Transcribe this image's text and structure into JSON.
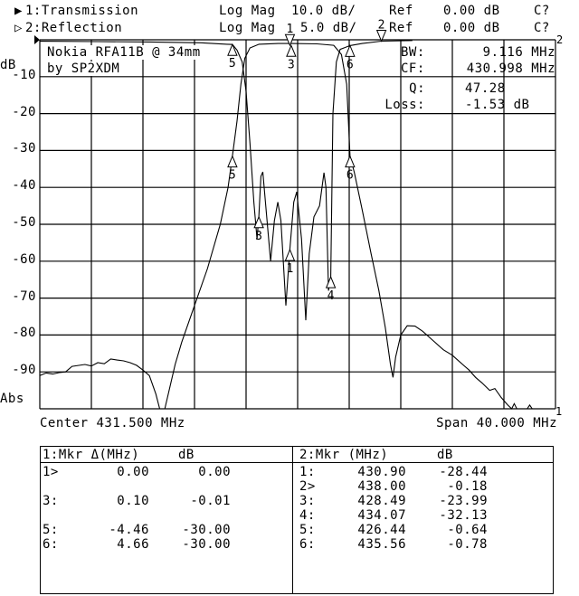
{
  "header": {
    "trace1": {
      "indicator": "▶",
      "label": "1:Transmission",
      "format": "Log Mag",
      "scale": "10.0 dB/",
      "ref_label": "Ref",
      "ref_value": "0.00 dB",
      "cal": "C?"
    },
    "trace2": {
      "indicator": "▷",
      "label": "2:Reflection",
      "format": "Log Mag",
      "scale": "5.0 dB/",
      "ref_label": "Ref",
      "ref_value": "0.00 dB",
      "cal": "C?"
    }
  },
  "annotation": {
    "title_line1": "Nokia RFA11B @ 34mm",
    "title_line2": "by SP2XDM",
    "bw_label": "BW:",
    "bw_value": "9.116 MHz",
    "cf_label": "CF:",
    "cf_value": "430.998 MHz",
    "q_label": "Q:",
    "q_value": "47.28",
    "loss_label": "Loss:",
    "loss_value": "-1.53 dB"
  },
  "axis": {
    "unit_label": "dB",
    "abs_label": "Abs",
    "y_ticks": [
      "-10",
      "-20",
      "-30",
      "-40",
      "-50",
      "-60",
      "-70",
      "-80",
      "-90"
    ],
    "center": "Center 431.500 MHz",
    "span": "Span 40.000 MHz",
    "trace1_end_label": "1",
    "trace2_end_label": "2"
  },
  "chart_data": {
    "type": "line",
    "title": "",
    "x_unit": "MHz",
    "xlim": [
      411.5,
      451.5
    ],
    "grid": true,
    "grid_divisions": {
      "x": 10,
      "y": 10
    },
    "series": [
      {
        "name": "1:Transmission",
        "ylim": [
          -100,
          0
        ],
        "color": "#000000",
        "points": [
          [
            411.5,
            -91
          ],
          [
            412,
            -90.3
          ],
          [
            412.5,
            -90.6
          ],
          [
            413,
            -90.2
          ],
          [
            413.5,
            -90
          ],
          [
            414,
            -88.5
          ],
          [
            415,
            -88
          ],
          [
            415.5,
            -88.4
          ],
          [
            416,
            -87.5
          ],
          [
            416.5,
            -87.8
          ],
          [
            417,
            -86.5
          ],
          [
            417.5,
            -86.8
          ],
          [
            418,
            -87
          ],
          [
            418.5,
            -87.5
          ],
          [
            419,
            -88.2
          ],
          [
            419.5,
            -89.5
          ],
          [
            420,
            -91
          ],
          [
            420.5,
            -96
          ],
          [
            420.8,
            -100
          ],
          [
            421.2,
            -100
          ],
          [
            421.6,
            -94
          ],
          [
            422,
            -88
          ],
          [
            422.5,
            -82
          ],
          [
            423.5,
            -72
          ],
          [
            424.5,
            -62
          ],
          [
            425.5,
            -50
          ],
          [
            426.1,
            -40
          ],
          [
            426.44,
            -31.5
          ],
          [
            426.8,
            -22
          ],
          [
            427.1,
            -12
          ],
          [
            427.4,
            -5
          ],
          [
            427.8,
            -2.2
          ],
          [
            428.5,
            -1.2
          ],
          [
            430,
            -1.0
          ],
          [
            431,
            -1.0
          ],
          [
            433,
            -1.1
          ],
          [
            434.3,
            -1.5
          ],
          [
            434.9,
            -4
          ],
          [
            435.3,
            -12
          ],
          [
            435.56,
            -31.5
          ],
          [
            435.9,
            -36
          ],
          [
            436.5,
            -46
          ],
          [
            437.2,
            -58
          ],
          [
            437.8,
            -68
          ],
          [
            438.3,
            -78
          ],
          [
            438.7,
            -88
          ],
          [
            438.9,
            -91.5
          ],
          [
            439.1,
            -86
          ],
          [
            439.5,
            -80
          ],
          [
            440,
            -77.5
          ],
          [
            440.6,
            -77.6
          ],
          [
            441.2,
            -79
          ],
          [
            442,
            -81.5
          ],
          [
            442.8,
            -84
          ],
          [
            443.5,
            -85.5
          ],
          [
            444.3,
            -88
          ],
          [
            444.8,
            -89.5
          ],
          [
            445.3,
            -91.5
          ],
          [
            445.8,
            -93
          ],
          [
            446.4,
            -95
          ],
          [
            446.8,
            -94.5
          ],
          [
            447.3,
            -97
          ],
          [
            447.8,
            -99
          ],
          [
            448.1,
            -100
          ],
          [
            448.3,
            -98.6
          ],
          [
            448.5,
            -100
          ],
          [
            449.3,
            -100
          ],
          [
            449.5,
            -99
          ],
          [
            449.7,
            -100
          ],
          [
            451.5,
            -100
          ]
        ],
        "markers": [
          {
            "id": "1",
            "x": 430.9,
            "y": -1.53,
            "active": true
          },
          {
            "id": "3",
            "x": 431.0,
            "y": -1.54
          },
          {
            "id": "5",
            "x": 426.44,
            "y": -31.53
          },
          {
            "id": "6",
            "x": 435.56,
            "y": -31.53
          }
        ]
      },
      {
        "name": "2:Reflection",
        "ylim": [
          -50,
          0
        ],
        "color": "#000000",
        "points": [
          [
            411.5,
            -0.2
          ],
          [
            416,
            -0.25
          ],
          [
            420,
            -0.3
          ],
          [
            424,
            -0.4
          ],
          [
            426,
            -0.6
          ],
          [
            426.44,
            -0.64
          ],
          [
            426.8,
            -1.4
          ],
          [
            427.2,
            -3
          ],
          [
            427.5,
            -7
          ],
          [
            427.8,
            -14
          ],
          [
            428.1,
            -22
          ],
          [
            428.35,
            -27
          ],
          [
            428.49,
            -24
          ],
          [
            428.65,
            -18.5
          ],
          [
            428.8,
            -17.9
          ],
          [
            429.0,
            -22
          ],
          [
            429.4,
            -30
          ],
          [
            429.7,
            -24.5
          ],
          [
            429.96,
            -22
          ],
          [
            430.2,
            -24.5
          ],
          [
            430.59,
            -36
          ],
          [
            430.9,
            -28.4
          ],
          [
            431.2,
            -22
          ],
          [
            431.43,
            -20.6
          ],
          [
            431.8,
            -27
          ],
          [
            432.13,
            -38
          ],
          [
            432.4,
            -29
          ],
          [
            432.76,
            -24
          ],
          [
            433.2,
            -22.5
          ],
          [
            433.54,
            -18
          ],
          [
            433.7,
            -20
          ],
          [
            433.89,
            -34
          ],
          [
            434.07,
            -32.1
          ],
          [
            434.24,
            -10
          ],
          [
            434.5,
            -3
          ],
          [
            434.8,
            -1.3
          ],
          [
            435.56,
            -0.78
          ],
          [
            436.5,
            -0.5
          ],
          [
            438.0,
            -0.18
          ],
          [
            440.4,
            -0.1
          ]
        ],
        "markers": [
          {
            "id": "1",
            "x": 430.9,
            "y": -28.44
          },
          {
            "id": "2",
            "x": 438.0,
            "y": -0.18,
            "active": true
          },
          {
            "id": "3",
            "x": 428.49,
            "y": -23.99
          },
          {
            "id": "4",
            "x": 434.07,
            "y": -32.13
          },
          {
            "id": "5",
            "x": 426.44,
            "y": -0.64
          },
          {
            "id": "6",
            "x": 435.56,
            "y": -0.78
          }
        ]
      }
    ]
  },
  "marker_tables": {
    "left": {
      "header_label": "1:Mkr Δ(MHz)",
      "header_unit": "dB",
      "rows": [
        {
          "id": "1>",
          "freq": "0.00",
          "db": "0.00"
        },
        {
          "id": "",
          "freq": "",
          "db": ""
        },
        {
          "id": "3:",
          "freq": "0.10",
          "db": "-0.01"
        },
        {
          "id": "",
          "freq": "",
          "db": ""
        },
        {
          "id": "5:",
          "freq": "-4.46",
          "db": "-30.00"
        },
        {
          "id": "6:",
          "freq": "4.66",
          "db": "-30.00"
        }
      ]
    },
    "right": {
      "header_label": "2:Mkr (MHz)",
      "header_unit": "dB",
      "rows": [
        {
          "id": "1:",
          "freq": "430.90",
          "db": "-28.44"
        },
        {
          "id": "2>",
          "freq": "438.00",
          "db": "-0.18"
        },
        {
          "id": "3:",
          "freq": "428.49",
          "db": "-23.99"
        },
        {
          "id": "4:",
          "freq": "434.07",
          "db": "-32.13"
        },
        {
          "id": "5:",
          "freq": "426.44",
          "db": "-0.64"
        },
        {
          "id": "6:",
          "freq": "435.56",
          "db": "-0.78"
        }
      ]
    }
  }
}
